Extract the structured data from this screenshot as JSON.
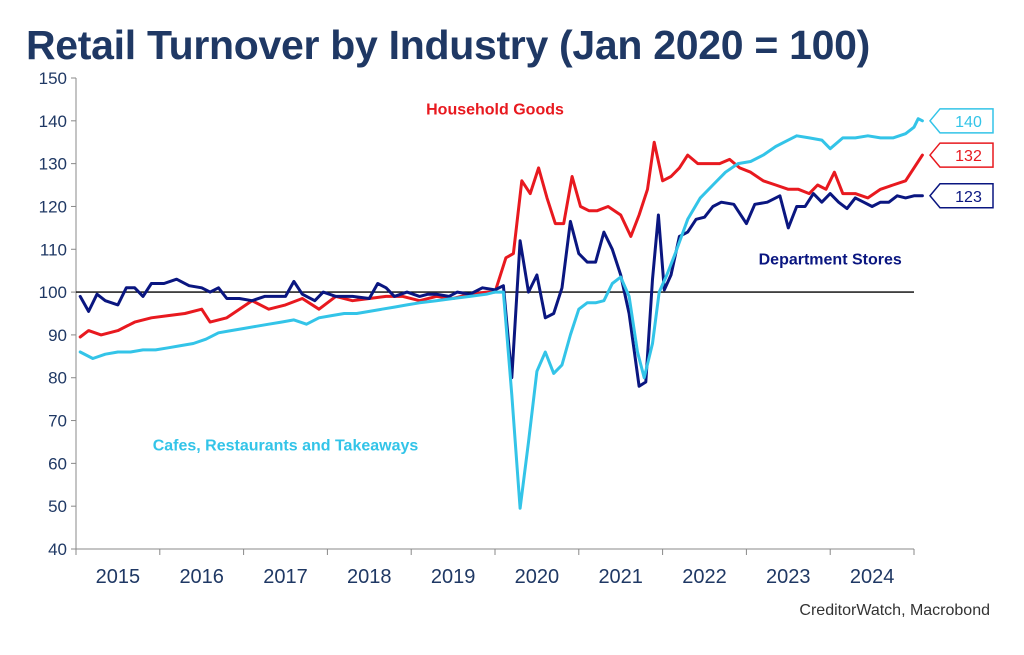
{
  "chart_data": {
    "type": "line",
    "title": "Retail Turnover by Industry (Jan 2020 = 100)",
    "source": "CreditorWatch, Macrobond",
    "xlabel": "",
    "ylabel": "",
    "ylim": [
      40,
      150
    ],
    "yticks": [
      40,
      50,
      60,
      70,
      80,
      90,
      100,
      110,
      120,
      130,
      140,
      150
    ],
    "xlim": [
      2015,
      2025
    ],
    "xticks": [
      "2015",
      "2016",
      "2017",
      "2018",
      "2019",
      "2020",
      "2021",
      "2022",
      "2023",
      "2024"
    ],
    "reference_line": 100,
    "grid": false,
    "series": [
      {
        "name": "Household Goods",
        "color": "#e8191f",
        "end_label": "132",
        "points": [
          [
            2015.05,
            89.5
          ],
          [
            2015.15,
            91
          ],
          [
            2015.3,
            90
          ],
          [
            2015.5,
            91
          ],
          [
            2015.7,
            93
          ],
          [
            2015.9,
            94
          ],
          [
            2016.1,
            94.5
          ],
          [
            2016.3,
            95
          ],
          [
            2016.5,
            96
          ],
          [
            2016.6,
            93
          ],
          [
            2016.8,
            94
          ],
          [
            2016.95,
            96
          ],
          [
            2017.1,
            98
          ],
          [
            2017.3,
            96
          ],
          [
            2017.5,
            97
          ],
          [
            2017.7,
            98.5
          ],
          [
            2017.9,
            96
          ],
          [
            2018.1,
            99
          ],
          [
            2018.3,
            98
          ],
          [
            2018.5,
            98.5
          ],
          [
            2018.7,
            99
          ],
          [
            2018.9,
            99
          ],
          [
            2019.1,
            98
          ],
          [
            2019.3,
            99
          ],
          [
            2019.5,
            98.5
          ],
          [
            2019.7,
            99.5
          ],
          [
            2019.9,
            100
          ],
          [
            2020.0,
            100
          ],
          [
            2020.13,
            108
          ],
          [
            2020.22,
            109
          ],
          [
            2020.32,
            126
          ],
          [
            2020.42,
            123
          ],
          [
            2020.52,
            129
          ],
          [
            2020.62,
            122
          ],
          [
            2020.72,
            116
          ],
          [
            2020.82,
            116
          ],
          [
            2020.92,
            127
          ],
          [
            2021.02,
            120
          ],
          [
            2021.12,
            119
          ],
          [
            2021.22,
            119
          ],
          [
            2021.35,
            120
          ],
          [
            2021.5,
            118
          ],
          [
            2021.62,
            113
          ],
          [
            2021.72,
            118
          ],
          [
            2021.82,
            124
          ],
          [
            2021.9,
            135
          ],
          [
            2022.0,
            126
          ],
          [
            2022.1,
            127
          ],
          [
            2022.2,
            129
          ],
          [
            2022.3,
            132
          ],
          [
            2022.42,
            130
          ],
          [
            2022.55,
            130
          ],
          [
            2022.68,
            130
          ],
          [
            2022.8,
            131
          ],
          [
            2022.92,
            129
          ],
          [
            2023.05,
            128
          ],
          [
            2023.2,
            126
          ],
          [
            2023.35,
            125
          ],
          [
            2023.5,
            124
          ],
          [
            2023.62,
            124
          ],
          [
            2023.75,
            123
          ],
          [
            2023.85,
            125
          ],
          [
            2023.95,
            124
          ],
          [
            2024.05,
            128
          ],
          [
            2024.15,
            123
          ],
          [
            2024.3,
            123
          ],
          [
            2024.45,
            122
          ],
          [
            2024.6,
            124
          ],
          [
            2024.75,
            125
          ],
          [
            2024.9,
            126
          ],
          [
            2025.0,
            129
          ],
          [
            2025.1,
            132
          ]
        ]
      },
      {
        "name": "Department Stores",
        "color": "#0a1680",
        "end_label": "123",
        "points": [
          [
            2015.05,
            99
          ],
          [
            2015.15,
            95.5
          ],
          [
            2015.25,
            99.5
          ],
          [
            2015.35,
            98
          ],
          [
            2015.5,
            97
          ],
          [
            2015.6,
            101
          ],
          [
            2015.7,
            101
          ],
          [
            2015.8,
            99
          ],
          [
            2015.9,
            102
          ],
          [
            2016.05,
            102
          ],
          [
            2016.2,
            103
          ],
          [
            2016.35,
            101.5
          ],
          [
            2016.5,
            101
          ],
          [
            2016.6,
            100
          ],
          [
            2016.7,
            101
          ],
          [
            2016.8,
            98.5
          ],
          [
            2016.95,
            98.5
          ],
          [
            2017.1,
            98
          ],
          [
            2017.25,
            99
          ],
          [
            2017.35,
            99
          ],
          [
            2017.5,
            99
          ],
          [
            2017.6,
            102.5
          ],
          [
            2017.7,
            99.5
          ],
          [
            2017.85,
            98
          ],
          [
            2017.95,
            100
          ],
          [
            2018.1,
            99
          ],
          [
            2018.3,
            99
          ],
          [
            2018.5,
            98.5
          ],
          [
            2018.6,
            102
          ],
          [
            2018.7,
            101
          ],
          [
            2018.8,
            99
          ],
          [
            2018.95,
            100
          ],
          [
            2019.1,
            99
          ],
          [
            2019.2,
            99.5
          ],
          [
            2019.3,
            99.5
          ],
          [
            2019.45,
            99
          ],
          [
            2019.55,
            100
          ],
          [
            2019.7,
            99.5
          ],
          [
            2019.85,
            101
          ],
          [
            2020.0,
            100.5
          ],
          [
            2020.1,
            101.5
          ],
          [
            2020.2,
            80
          ],
          [
            2020.3,
            112
          ],
          [
            2020.4,
            100
          ],
          [
            2020.5,
            104
          ],
          [
            2020.6,
            94
          ],
          [
            2020.7,
            95
          ],
          [
            2020.8,
            101
          ],
          [
            2020.9,
            116.5
          ],
          [
            2021.0,
            109
          ],
          [
            2021.1,
            107
          ],
          [
            2021.2,
            107
          ],
          [
            2021.3,
            114
          ],
          [
            2021.4,
            110
          ],
          [
            2021.5,
            104
          ],
          [
            2021.6,
            95
          ],
          [
            2021.72,
            78
          ],
          [
            2021.8,
            79
          ],
          [
            2021.88,
            103
          ],
          [
            2021.95,
            118
          ],
          [
            2022.02,
            100.5
          ],
          [
            2022.1,
            104
          ],
          [
            2022.2,
            113
          ],
          [
            2022.3,
            114
          ],
          [
            2022.4,
            117
          ],
          [
            2022.5,
            117.5
          ],
          [
            2022.6,
            120
          ],
          [
            2022.7,
            121
          ],
          [
            2022.85,
            120.5
          ],
          [
            2023.0,
            116
          ],
          [
            2023.1,
            120.5
          ],
          [
            2023.25,
            121
          ],
          [
            2023.4,
            122.5
          ],
          [
            2023.5,
            115
          ],
          [
            2023.6,
            120
          ],
          [
            2023.7,
            120
          ],
          [
            2023.8,
            123
          ],
          [
            2023.9,
            121
          ],
          [
            2024.0,
            123
          ],
          [
            2024.1,
            121
          ],
          [
            2024.2,
            119.5
          ],
          [
            2024.3,
            122
          ],
          [
            2024.4,
            121
          ],
          [
            2024.5,
            120
          ],
          [
            2024.6,
            121
          ],
          [
            2024.7,
            121
          ],
          [
            2024.8,
            122.5
          ],
          [
            2024.9,
            122
          ],
          [
            2025.0,
            122.5
          ],
          [
            2025.1,
            122.5
          ]
        ]
      },
      {
        "name": "Cafes, Restaurants and Takeaways",
        "color": "#33c4e8",
        "end_label": "140",
        "points": [
          [
            2015.05,
            86
          ],
          [
            2015.2,
            84.5
          ],
          [
            2015.35,
            85.5
          ],
          [
            2015.5,
            86
          ],
          [
            2015.65,
            86
          ],
          [
            2015.8,
            86.5
          ],
          [
            2015.95,
            86.5
          ],
          [
            2016.1,
            87
          ],
          [
            2016.25,
            87.5
          ],
          [
            2016.4,
            88
          ],
          [
            2016.55,
            89
          ],
          [
            2016.7,
            90.5
          ],
          [
            2016.85,
            91
          ],
          [
            2017.0,
            91.5
          ],
          [
            2017.15,
            92
          ],
          [
            2017.3,
            92.5
          ],
          [
            2017.45,
            93
          ],
          [
            2017.6,
            93.5
          ],
          [
            2017.75,
            92.5
          ],
          [
            2017.9,
            94
          ],
          [
            2018.05,
            94.5
          ],
          [
            2018.2,
            95
          ],
          [
            2018.35,
            95
          ],
          [
            2018.5,
            95.5
          ],
          [
            2018.65,
            96
          ],
          [
            2018.8,
            96.5
          ],
          [
            2018.95,
            97
          ],
          [
            2019.1,
            97.5
          ],
          [
            2019.3,
            98
          ],
          [
            2019.5,
            98.5
          ],
          [
            2019.7,
            99
          ],
          [
            2019.9,
            99.5
          ],
          [
            2020.0,
            100
          ],
          [
            2020.1,
            100
          ],
          [
            2020.2,
            76
          ],
          [
            2020.3,
            49.5
          ],
          [
            2020.4,
            65
          ],
          [
            2020.5,
            81.5
          ],
          [
            2020.6,
            86
          ],
          [
            2020.7,
            81
          ],
          [
            2020.8,
            83
          ],
          [
            2020.9,
            90
          ],
          [
            2021.0,
            96
          ],
          [
            2021.1,
            97.5
          ],
          [
            2021.2,
            97.5
          ],
          [
            2021.3,
            98
          ],
          [
            2021.4,
            102
          ],
          [
            2021.5,
            103.5
          ],
          [
            2021.6,
            99
          ],
          [
            2021.7,
            86
          ],
          [
            2021.78,
            80
          ],
          [
            2021.88,
            88
          ],
          [
            2021.96,
            100
          ],
          [
            2022.05,
            104
          ],
          [
            2022.15,
            109
          ],
          [
            2022.3,
            117
          ],
          [
            2022.45,
            122
          ],
          [
            2022.6,
            125
          ],
          [
            2022.75,
            128
          ],
          [
            2022.9,
            130
          ],
          [
            2023.05,
            130.5
          ],
          [
            2023.2,
            132
          ],
          [
            2023.35,
            134
          ],
          [
            2023.5,
            135.5
          ],
          [
            2023.6,
            136.5
          ],
          [
            2023.75,
            136
          ],
          [
            2023.9,
            135.5
          ],
          [
            2024.0,
            133.5
          ],
          [
            2024.15,
            136
          ],
          [
            2024.3,
            136
          ],
          [
            2024.45,
            136.5
          ],
          [
            2024.6,
            136
          ],
          [
            2024.75,
            136
          ],
          [
            2024.9,
            137
          ],
          [
            2025.0,
            138.5
          ],
          [
            2025.05,
            140.5
          ],
          [
            2025.1,
            140
          ]
        ]
      }
    ],
    "annotations": [
      {
        "text": "Household Goods",
        "x": 2020.0,
        "y": 141.5,
        "color": "#e8191f"
      },
      {
        "text": "Department Stores",
        "x": 2024.0,
        "y": 106.5,
        "color": "#0a1680"
      },
      {
        "text": "Cafes, Restaurants and Takeaways",
        "x": 2017.5,
        "y": 63,
        "color": "#33c4e8"
      }
    ]
  }
}
